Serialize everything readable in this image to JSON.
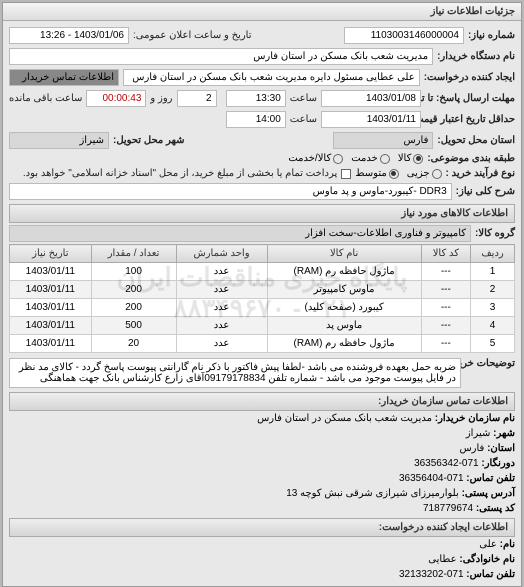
{
  "panel_title": "جزئیات اطلاعات نیاز",
  "req_number_label": "شماره نیاز:",
  "req_number": "1103003146000004",
  "announce_label": "تاریخ و ساعت اعلان عمومی:",
  "announce_value": "1403/01/06 - 13:26",
  "buyer_name_label": "نام دستگاه خریدار:",
  "buyer_name": "مدیریت شعب بانک مسکن در استان فارس",
  "requester_label": "ایجاد کننده درخواست:",
  "requester": "علی عطایی مسئول دایره مدیریت شعب بانک مسکن در استان فارس",
  "buyer_contact_link": "اطلاعات تماس خریدار",
  "deadline_send_label": "مهلت ارسال پاسخ: تا تاریخ:",
  "deadline_send_date": "1403/01/08",
  "time_label": "ساعت",
  "deadline_send_time": "13:30",
  "days_left": "2",
  "days_left_label": "روز و",
  "time_left": "00:00:43",
  "time_left_label": "ساعت باقی مانده",
  "validity_label": "حداقل تاریخ اعتبار قیمت: تا تاریخ:",
  "validity_date": "1403/01/11",
  "validity_time": "14:00",
  "province_label": "استان محل تحویل:",
  "province": "فارس",
  "city_label": "شهر محل تحویل:",
  "city": "شیراز",
  "subject_type_label": "طبقه بندی موضوعی:",
  "subject_type_goods": "کالا",
  "subject_type_service": "خدمت",
  "subject_type_both": "کالا/خدمت",
  "process_type_label": "نوع فرآیند خرید :",
  "process_low": "جزیی",
  "process_mid": "متوسط",
  "process_note": "پرداخت تمام یا بخشی از مبلغ خرید، از محل \"اسناد خزانه اسلامی\" خواهد بود.",
  "key_desc_label": "شرح کلی نیاز:",
  "key_desc": "DDR3 -کیبورد-ماوس و پد ماوس",
  "items_title": "اطلاعات کالاهای مورد نیاز",
  "group_label": "گروه کالا:",
  "group_value": "کامپیوتر و فناوری اطلاعات-سخت افزار",
  "table": {
    "columns": [
      "ردیف",
      "کد کالا",
      "نام کالا",
      "واحد شمارش",
      "تعداد / مقدار",
      "تاریخ نیاز"
    ],
    "rows": [
      [
        "1",
        "---",
        "ماژول حافظه رم (RAM)",
        "عدد",
        "100",
        "1403/01/11"
      ],
      [
        "2",
        "---",
        "ماوس کامپیوتر",
        "عدد",
        "200",
        "1403/01/11"
      ],
      [
        "3",
        "---",
        "کیبورد (صفحه کلید)",
        "عدد",
        "200",
        "1403/01/11"
      ],
      [
        "4",
        "---",
        "ماوس پد",
        "عدد",
        "500",
        "1403/01/11"
      ],
      [
        "5",
        "---",
        "ماژول حافظه رم (RAM)",
        "عدد",
        "20",
        "1403/01/11"
      ]
    ]
  },
  "buyer_notes_label": "توضیحات خریدار:",
  "buyer_notes": "ضربه حمل بعهده فروشنده می باشد -لطفا پیش فاکتور با ذکر نام گارانتی پیوست پاسخ گردد - کالای مد نظر در فایل پیوست موجود می باشد - شماره تلفن 09179178834آقای زارع کارشناس بانک جهت هماهنگی",
  "contact_title": "اطلاعات تماس سازمان خریدار:",
  "org_name_label": "نام سازمان خریدار:",
  "org_name": "مدیریت شعب بانک مسکن در استان فارس",
  "c_province_label": "استان:",
  "c_province": "فارس",
  "c_city_label": "شهر:",
  "c_city": "شیراز",
  "c_fax_label": "دورنگار:",
  "c_fax": "071-36356342",
  "c_phone_label": "تلفن تماس:",
  "c_phone": "071-36356404",
  "c_addr_label": "آدرس پستی:",
  "c_addr": "بلوارمیرزای شیرازی شرقی نبش کوچه 13",
  "c_zip_label": "کد پستی:",
  "c_zip": "718779674",
  "contact_person_title": "اطلاعات ایجاد کننده درخواست:",
  "p_name_label": "نام:",
  "p_name": "علی",
  "p_family_label": "نام خانوادگی:",
  "p_family": "عطایی",
  "p_phone_label": "تلفن تماس:",
  "p_phone": "071-32133202",
  "watermark_line1": "پایگاه خبری مناقصات ایران",
  "watermark_line2": "۰۲۱ - ۸۸۳۴۹۶۷۰"
}
